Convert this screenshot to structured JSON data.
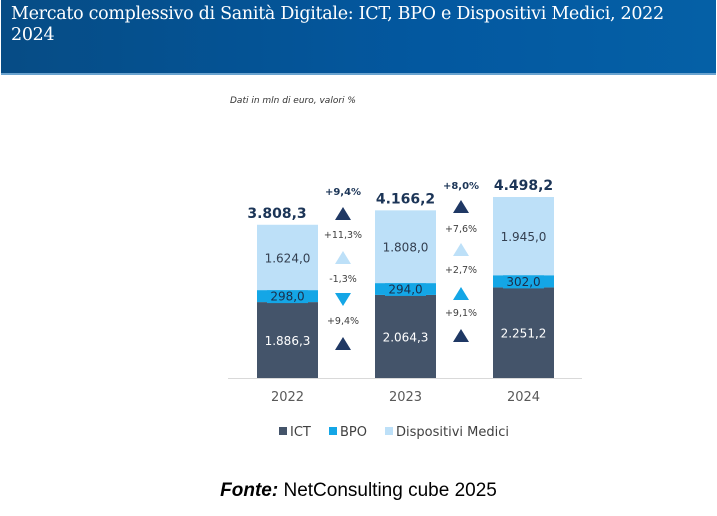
{
  "header": {
    "title": "Mercato complessivo di Sanità Digitale: ICT, BPO e Dispositivi Medici, 2022 2024"
  },
  "subtitle": "Dati in mln di euro, valori %",
  "source": {
    "label": "Fonte:",
    "text": "NetConsulting cube 2025"
  },
  "colors": {
    "header_bg": "#0358a0",
    "ICT": "#44546a",
    "BPO": "#14a6e6",
    "Dispositivi Medici": "#bde0f8",
    "total_text": "#1c3557",
    "arrow_total": "#1f3864"
  },
  "chart_data": {
    "type": "bar",
    "stacked": true,
    "title": "Mercato complessivo di Sanità Digitale: ICT, BPO e Dispositivi Medici, 2022 2024",
    "subtitle": "Dati in mln di euro, valori %",
    "categories": [
      "2022",
      "2023",
      "2024"
    ],
    "series": [
      {
        "name": "ICT",
        "values": [
          1886.3,
          2064.3,
          2251.2
        ],
        "labels": [
          "1.886,3",
          "2.064,3",
          "2.251,2"
        ]
      },
      {
        "name": "BPO",
        "values": [
          298.0,
          294.0,
          302.0
        ],
        "labels": [
          "298,0",
          "294,0",
          "302,0"
        ]
      },
      {
        "name": "Dispositivi Medici",
        "values": [
          1624.0,
          1808.0,
          1945.0
        ],
        "labels": [
          "1.624,0",
          "1.808,0",
          "1.945,0"
        ]
      }
    ],
    "totals": {
      "values": [
        3808.3,
        4166.2,
        4498.2
      ],
      "labels": [
        "3.808,3",
        "4.166,2",
        "4.498,2"
      ]
    },
    "growth": [
      {
        "period": "2022-2023",
        "total": {
          "label": "+9,4%",
          "direction": "up"
        },
        "Dispositivi Medici": {
          "label": "+11,3%",
          "direction": "up"
        },
        "BPO": {
          "label": "-1,3%",
          "direction": "down"
        },
        "ICT": {
          "label": "+9,4%",
          "direction": "up"
        }
      },
      {
        "period": "2023-2024",
        "total": {
          "label": "+8,0%",
          "direction": "up"
        },
        "Dispositivi Medici": {
          "label": "+7,6%",
          "direction": "up"
        },
        "BPO": {
          "label": "+2,7%",
          "direction": "up"
        },
        "ICT": {
          "label": "+9,1%",
          "direction": "up"
        }
      }
    ],
    "xlabel": "",
    "ylabel": "",
    "ylim": [
      0,
      4800
    ],
    "grid": false,
    "legend": {
      "position": "bottom",
      "entries": [
        "ICT",
        "BPO",
        "Dispositivi Medici"
      ]
    }
  }
}
